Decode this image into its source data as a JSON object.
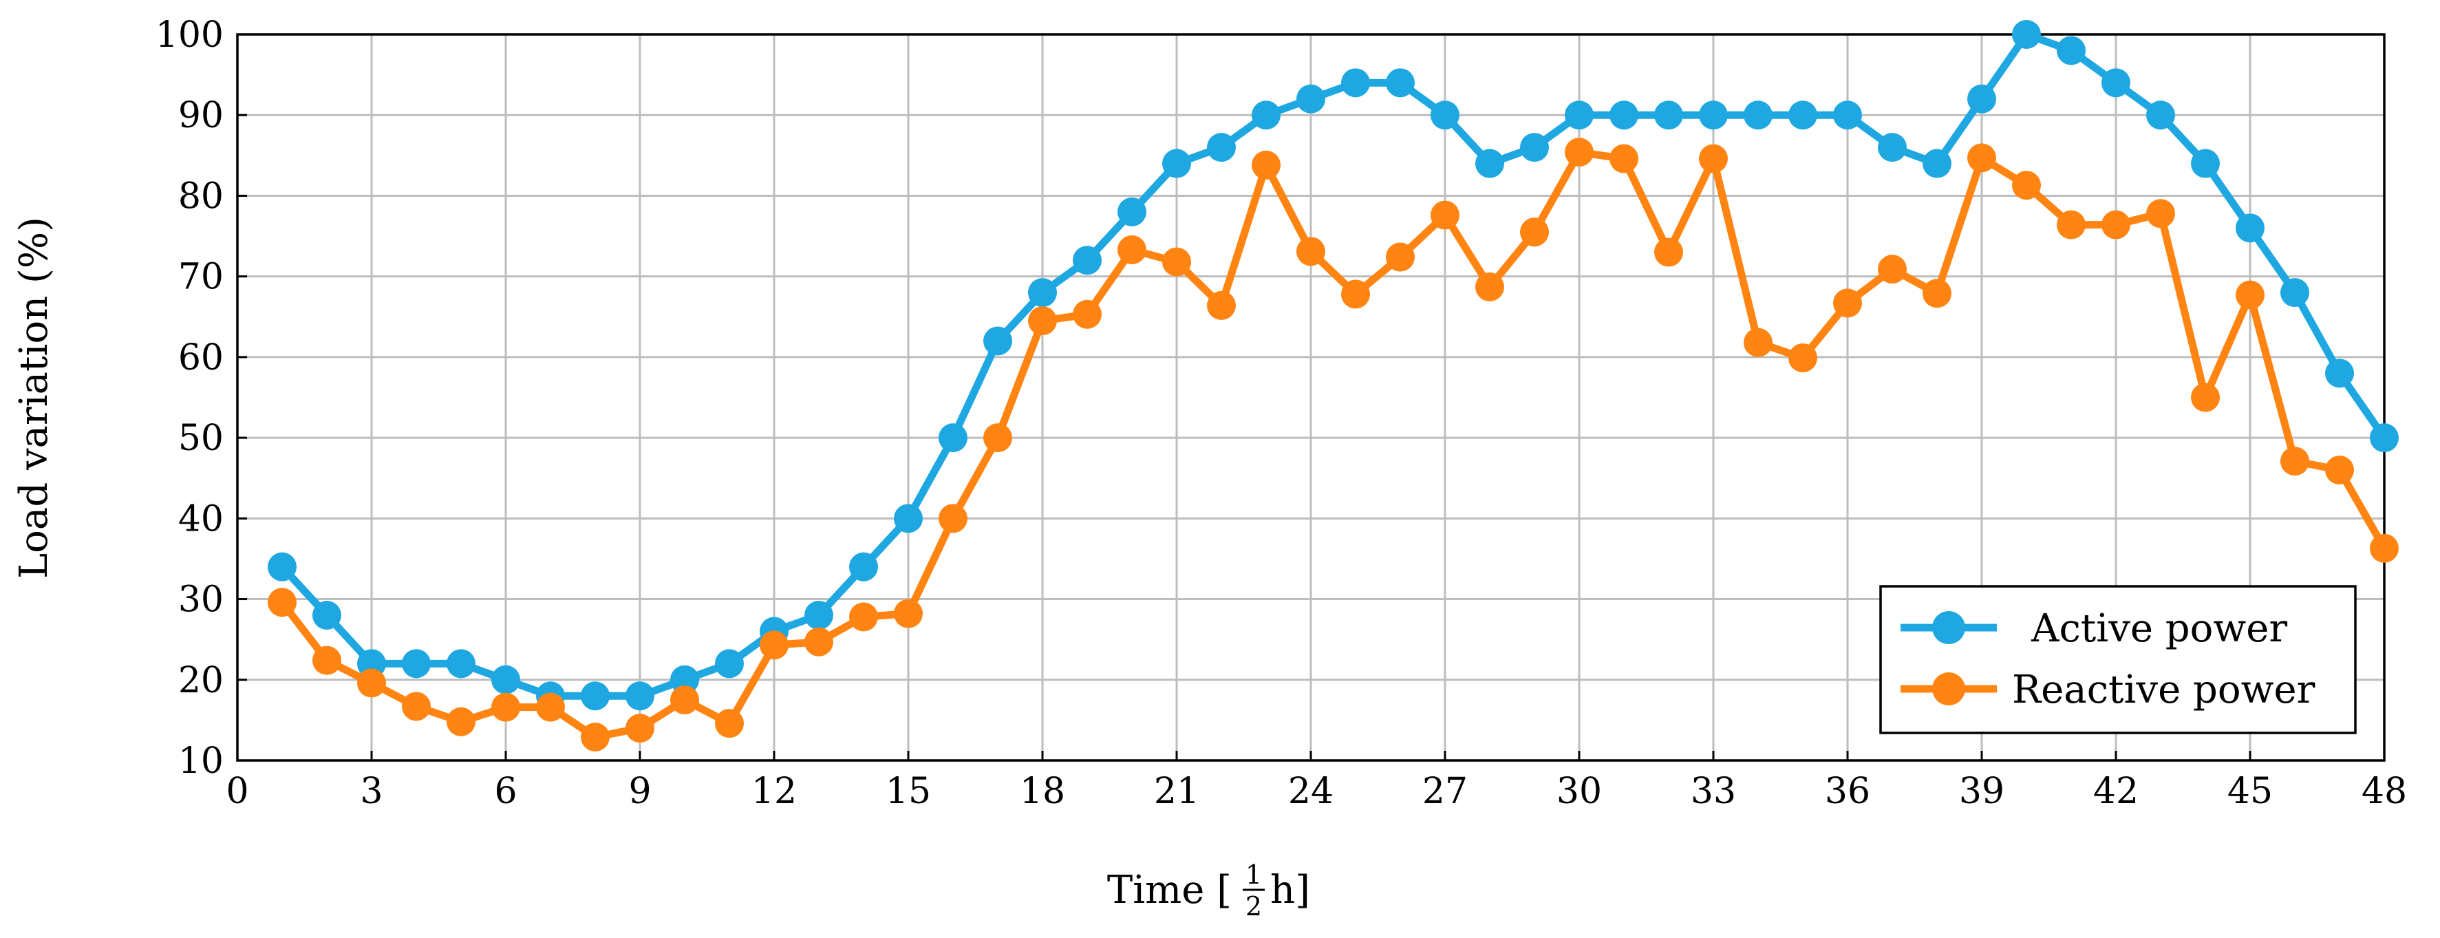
{
  "chart_data": {
    "type": "line",
    "xlabel": "Time [",
    "xlabel_frac_num": "1",
    "xlabel_frac_den": "2",
    "xlabel_unit": "h]",
    "ylabel": "Load variation (%)",
    "xlim": [
      0,
      48
    ],
    "ylim": [
      10,
      100
    ],
    "x_ticks": [
      "0",
      "3",
      "6",
      "9",
      "12",
      "15",
      "18",
      "21",
      "24",
      "27",
      "30",
      "33",
      "36",
      "39",
      "42",
      "45",
      "48"
    ],
    "y_ticks": [
      "10",
      "20",
      "30",
      "40",
      "50",
      "60",
      "70",
      "80",
      "90",
      "100"
    ],
    "grid": true,
    "legend_position": "bottom-right",
    "x": [
      1,
      2,
      3,
      4,
      5,
      6,
      7,
      8,
      9,
      10,
      11,
      12,
      13,
      14,
      15,
      16,
      17,
      18,
      19,
      20,
      21,
      22,
      23,
      24,
      25,
      26,
      27,
      28,
      29,
      30,
      31,
      32,
      33,
      34,
      35,
      36,
      37,
      38,
      39,
      40,
      41,
      42,
      43,
      44,
      45,
      46,
      47,
      48
    ],
    "series": [
      {
        "name": "Active power",
        "color": "#1ea7e1",
        "values": [
          34,
          28,
          22,
          22,
          22,
          20,
          18,
          18,
          18,
          20,
          22,
          26,
          28,
          34,
          40,
          50,
          62,
          68,
          72,
          78,
          84,
          86,
          90,
          92,
          94,
          94,
          90,
          84,
          86,
          90,
          90,
          90,
          90,
          90,
          90,
          90,
          86,
          84,
          92,
          100,
          98,
          94,
          90,
          84,
          76,
          68,
          58,
          50
        ]
      },
      {
        "name": "Reactive power",
        "color": "#ff8412",
        "values": [
          29.6,
          22.4,
          19.6,
          16.7,
          14.8,
          16.6,
          16.6,
          12.9,
          14.0,
          17.5,
          14.6,
          24.3,
          24.7,
          27.8,
          28.2,
          40,
          50,
          64.5,
          65.3,
          73.3,
          71.8,
          66.4,
          83.8,
          73.1,
          67.8,
          72.4,
          77.6,
          68.7,
          75.5,
          85.4,
          84.6,
          73.0,
          84.6,
          61.8,
          59.9,
          66.7,
          70.9,
          67.9,
          84.7,
          81.3,
          76.4,
          76.4,
          77.8,
          55.0,
          67.7,
          47.1,
          46.0,
          36.3
        ]
      }
    ]
  }
}
